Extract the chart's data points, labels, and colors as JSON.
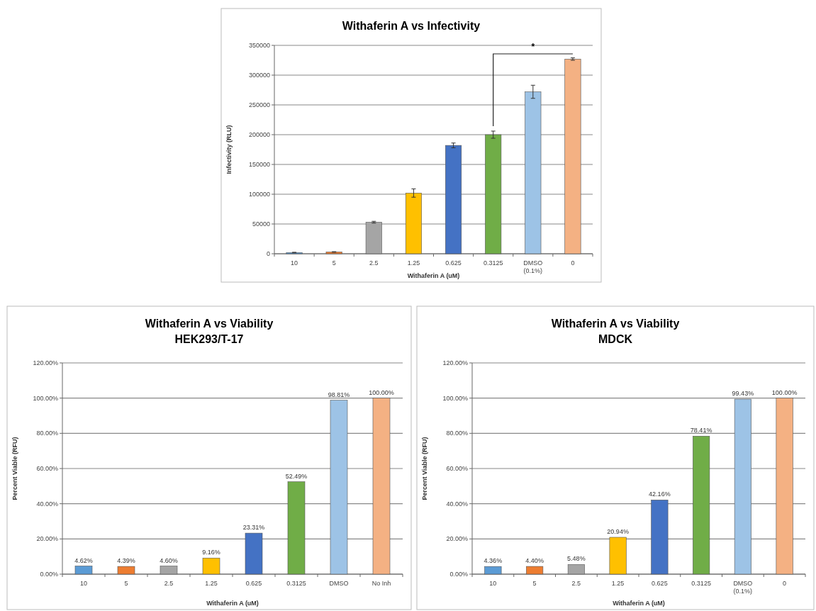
{
  "chart_data": [
    {
      "type": "bar",
      "title": "Withaferin A vs Infectivity",
      "xlabel": "Withaferin A (uM)",
      "ylabel": "Infectivity (RLU)",
      "categories": [
        "10",
        "5",
        "2.5",
        "1.25",
        "0.625",
        "0.3125",
        "DMSO (0.1%)",
        "0"
      ],
      "values": [
        2000,
        3000,
        53000,
        102000,
        182000,
        200000,
        272000,
        327000
      ],
      "errors": [
        500,
        500,
        1500,
        7000,
        4000,
        6000,
        11000,
        2000
      ],
      "colors": [
        "#5b9bd5",
        "#ed7d31",
        "#a5a5a5",
        "#ffc000",
        "#4472c4",
        "#70ad47",
        "#9dc3e6",
        "#f4b183"
      ],
      "ylim": [
        0,
        350000
      ],
      "yticks": [
        0,
        50000,
        100000,
        150000,
        200000,
        250000,
        300000,
        350000
      ],
      "grid": "y",
      "annotations": [
        "*"
      ]
    },
    {
      "type": "bar",
      "title": "Withaferin A vs Viability",
      "subtitle": "HEK293/T-17",
      "xlabel": "Withaferin A (uM)",
      "ylabel": "Percent Viable (RFU)",
      "categories": [
        "10",
        "5",
        "2.5",
        "1.25",
        "0.625",
        "0.3125",
        "DMSO",
        "No Inh"
      ],
      "values": [
        4.62,
        4.39,
        4.6,
        9.16,
        23.31,
        52.49,
        98.81,
        100
      ],
      "value_labels": [
        "4.62%",
        "4.39%",
        "4.60%",
        "9.16%",
        "23.31%",
        "52.49%",
        "98.81%",
        "100.00%"
      ],
      "colors": [
        "#5b9bd5",
        "#ed7d31",
        "#a5a5a5",
        "#ffc000",
        "#4472c4",
        "#70ad47",
        "#9dc3e6",
        "#f4b183"
      ],
      "ylim": [
        0,
        120
      ],
      "yticks": [
        {
          "value": 0,
          "label": "0.00%"
        },
        {
          "value": 20,
          "label": "20.00%"
        },
        {
          "value": 40,
          "label": "40.00%"
        },
        {
          "value": 60,
          "label": "60.00%"
        },
        {
          "value": 80,
          "label": "80.00%"
        },
        {
          "value": 100,
          "label": "100.00%"
        },
        {
          "value": 120,
          "label": "120.00%"
        }
      ],
      "grid": "y"
    },
    {
      "type": "bar",
      "title": "Withaferin A vs Viability",
      "subtitle": "MDCK",
      "xlabel": "Withaferin A (uM)",
      "ylabel": "Percent Viable (RFU)",
      "categories": [
        "10",
        "5",
        "2.5",
        "1.25",
        "0.625",
        "0.3125",
        "DMSO (0.1%)",
        "0"
      ],
      "values": [
        4.36,
        4.4,
        5.48,
        20.94,
        42.16,
        78.41,
        99.43,
        100
      ],
      "value_labels": [
        "4.36%",
        "4.40%",
        "5.48%",
        "20.94%",
        "42.16%",
        "78.41%",
        "99.43%",
        "100.00%"
      ],
      "colors": [
        "#5b9bd5",
        "#ed7d31",
        "#a5a5a5",
        "#ffc000",
        "#4472c4",
        "#70ad47",
        "#9dc3e6",
        "#f4b183"
      ],
      "ylim": [
        0,
        120
      ],
      "yticks": [
        {
          "value": 0,
          "label": "0.00%"
        },
        {
          "value": 20,
          "label": "20.00%"
        },
        {
          "value": 40,
          "label": "40.00%"
        },
        {
          "value": 60,
          "label": "60.00%"
        },
        {
          "value": 80,
          "label": "80.00%"
        },
        {
          "value": 100,
          "label": "100.00%"
        },
        {
          "value": 120,
          "label": "120.00%"
        }
      ],
      "grid": "y"
    }
  ]
}
